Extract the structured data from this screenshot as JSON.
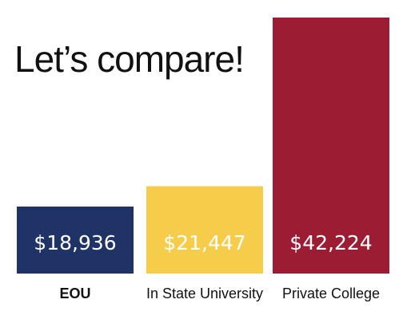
{
  "chart_data": {
    "type": "bar",
    "title": "Let’s compare!",
    "categories": [
      "EOU",
      "In State University",
      "Private College"
    ],
    "values": [
      18936,
      21447,
      42224
    ],
    "value_labels": [
      "$18,936",
      "$21,447",
      "$42,224"
    ],
    "colors": [
      "#1f3366",
      "#f5cd4a",
      "#9b1c33"
    ],
    "label_colors": [
      "#ffffff",
      "#ffffff",
      "#ffffff"
    ],
    "bold_categories": [
      true,
      false,
      false
    ],
    "ylim": [
      0,
      42224
    ],
    "grid": false,
    "legend": "none",
    "xlabel": "",
    "ylabel": ""
  }
}
